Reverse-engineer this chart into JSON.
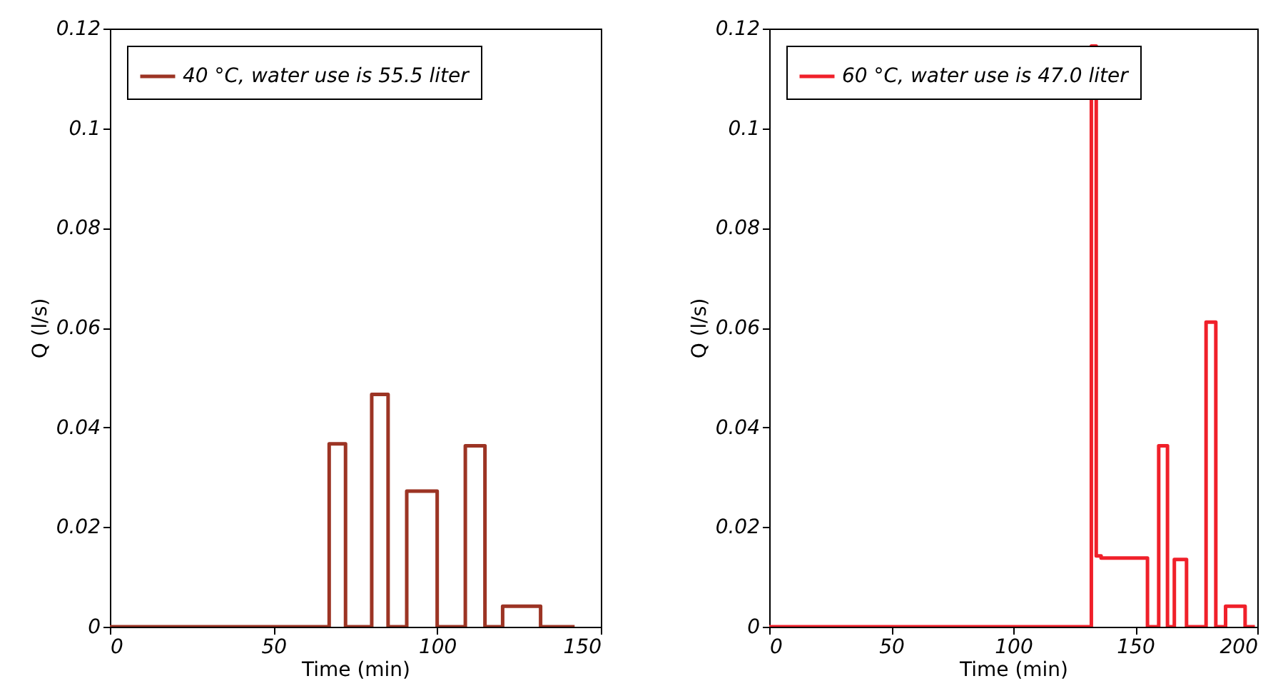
{
  "chart_data": [
    {
      "type": "step",
      "xlabel": "Time (min)",
      "ylabel": "Q (l/s)",
      "xlim": [
        0,
        150
      ],
      "ylim": [
        0,
        0.12
      ],
      "xticks": [
        0,
        50,
        100,
        150
      ],
      "yticks": [
        0,
        0.02,
        0.04,
        0.06,
        0.08,
        0.1,
        0.12
      ],
      "legend": "top left",
      "x": [
        0,
        67,
        72,
        80,
        85,
        90.7,
        100,
        108.6,
        114.6,
        120,
        131.6,
        142
      ],
      "series": [
        {
          "name": "40 °C, water use is 55.5 liter",
          "color": "#9c3424",
          "values": [
            0,
            0.0367,
            0,
            0.0466,
            0,
            0.0272,
            0,
            0.0363,
            0,
            0.0041,
            0,
            0
          ]
        }
      ]
    },
    {
      "type": "step",
      "xlabel": "Time (min)",
      "ylabel": "Q (l/s)",
      "xlim": [
        0,
        200
      ],
      "ylim": [
        0,
        0.12
      ],
      "xticks": [
        0,
        50,
        100,
        150,
        200
      ],
      "yticks": [
        0,
        0.02,
        0.04,
        0.06,
        0.08,
        0.1,
        0.12
      ],
      "legend": "top left",
      "x": [
        0,
        132,
        134,
        136,
        155,
        159.6,
        163.2,
        166,
        171,
        179,
        183,
        187,
        195,
        199
      ],
      "series": [
        {
          "name": "60 °C, water use is 47.0 liter",
          "color": "#f0202a",
          "values": [
            0,
            0.1165,
            0.0142,
            0.0138,
            0,
            0.0363,
            0,
            0.0135,
            0,
            0.0611,
            0,
            0.0041,
            0,
            0
          ]
        }
      ]
    }
  ]
}
